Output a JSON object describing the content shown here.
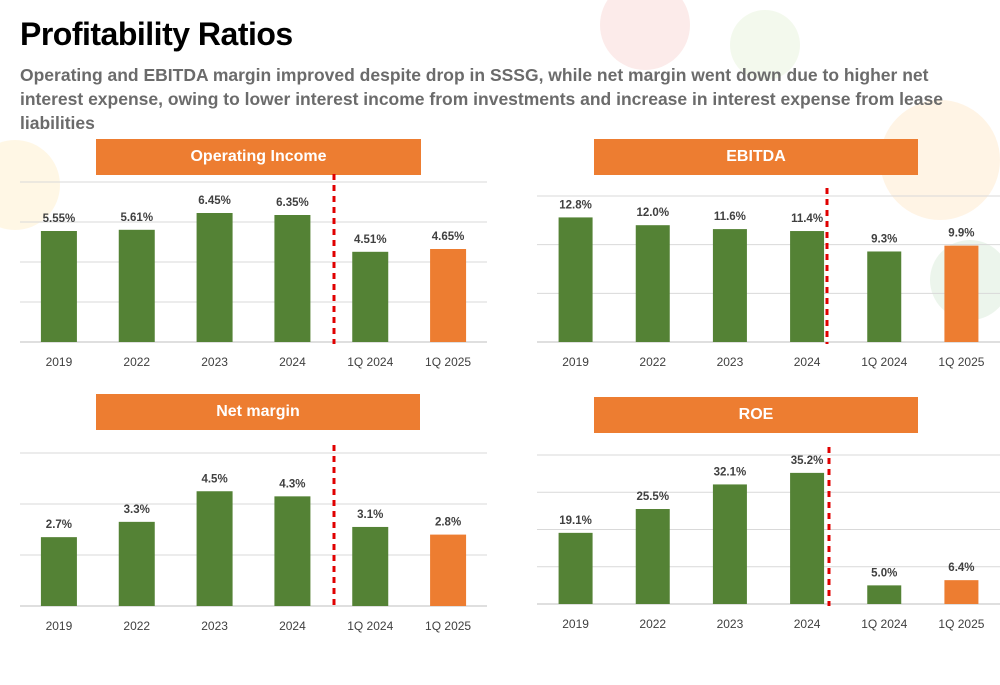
{
  "title": "Profitability Ratios",
  "subtitle": "Operating and EBITDA margin improved despite drop in SSSG, while net margin went down due to higher net interest expense, owing to lower interest income from investments and increase in interest expense from lease liabilities",
  "colors": {
    "green": "#548235",
    "orange": "#ed7d31",
    "separator": "#e00000",
    "grid": "#d9d9d9"
  },
  "chart_data": [
    {
      "type": "bar",
      "title": "Operating Income",
      "categories": [
        "2019",
        "2022",
        "2023",
        "2024",
        "1Q 2024",
        "1Q 2025"
      ],
      "values": [
        5.55,
        5.61,
        6.45,
        6.35,
        4.51,
        4.65
      ],
      "labels": [
        "5.55%",
        "5.61%",
        "6.45%",
        "6.35%",
        "4.51%",
        "4.65%"
      ],
      "highlight_index": 5,
      "separator_after_index": 3,
      "ylim": [
        0,
        8
      ],
      "grid_step": 2,
      "grid": true
    },
    {
      "type": "bar",
      "title": "EBITDA",
      "categories": [
        "2019",
        "2022",
        "2023",
        "2024",
        "1Q 2024",
        "1Q 2025"
      ],
      "values": [
        12.8,
        12.0,
        11.6,
        11.4,
        9.3,
        9.9
      ],
      "labels": [
        "12.8%",
        "12.0%",
        "11.6%",
        "11.4%",
        "9.3%",
        "9.9%"
      ],
      "highlight_index": 5,
      "separator_after_index": 3,
      "ylim": [
        0,
        15
      ],
      "grid_step": 5,
      "grid": true
    },
    {
      "type": "bar",
      "title": "Net margin",
      "categories": [
        "2019",
        "2022",
        "2023",
        "2024",
        "1Q 2024",
        "1Q 2025"
      ],
      "values": [
        2.7,
        3.3,
        4.5,
        4.3,
        3.1,
        2.8
      ],
      "labels": [
        "2.7%",
        "3.3%",
        "4.5%",
        "4.3%",
        "3.1%",
        "2.8%"
      ],
      "highlight_index": 5,
      "separator_after_index": 3,
      "ylim": [
        0,
        6
      ],
      "grid_step": 2,
      "grid": true
    },
    {
      "type": "bar",
      "title": "ROE",
      "categories": [
        "2019",
        "2022",
        "2023",
        "2024",
        "1Q 2024",
        "1Q 2025"
      ],
      "values": [
        19.1,
        25.5,
        32.1,
        35.2,
        5.0,
        6.4
      ],
      "labels": [
        "19.1%",
        "25.5%",
        "32.1%",
        "35.2%",
        "5.0%",
        "6.4%"
      ],
      "highlight_index": 5,
      "separator_after_index": 3,
      "ylim": [
        0,
        40
      ],
      "grid_step": 10,
      "grid": true
    }
  ]
}
